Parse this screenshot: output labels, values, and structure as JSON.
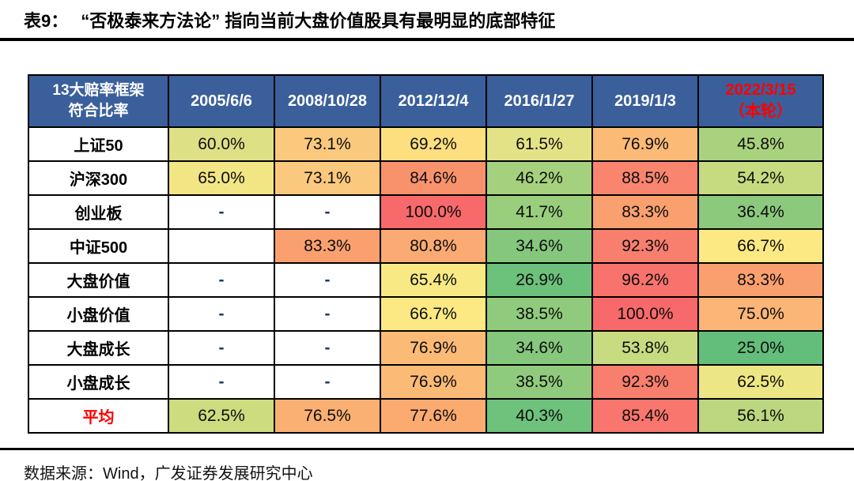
{
  "page": {
    "title_prefix": "表9：",
    "title_text": "“否极泰来方法论” 指向当前大盘价值股具有最明显的底部特征",
    "footer_source": "数据来源：Wind，广发证券发展研究中心"
  },
  "colors": {
    "header_bg": "#3A5F9B",
    "header_text": "#FFFFFF",
    "highlight_text": "#FF0000",
    "border": "#000000",
    "scale_low_green": "#63BE7B",
    "scale_mid_yellow": "#FFEB84",
    "scale_high_red": "#F8696B"
  },
  "table": {
    "header": {
      "corner_line1": "13大赔率框架",
      "corner_line2": "符合比率",
      "dates": [
        "2005/6/6",
        "2008/10/28",
        "2012/12/4",
        "2016/1/27",
        "2019/1/3"
      ],
      "current_line1": "2022/3/15",
      "current_line2": "（本轮）"
    },
    "rows": [
      {
        "label": "上证50",
        "emphasis": false,
        "cells": [
          {
            "text": "60.0%",
            "bg": "#DEE085"
          },
          {
            "text": "73.1%",
            "bg": "#FBC97D"
          },
          {
            "text": "69.2%",
            "bg": "#FDDF7F"
          },
          {
            "text": "61.5%",
            "bg": "#E4E286"
          },
          {
            "text": "76.9%",
            "bg": "#FBBA76"
          },
          {
            "text": "45.8%",
            "bg": "#A9D27F"
          }
        ]
      },
      {
        "label": "沪深300",
        "emphasis": false,
        "cells": [
          {
            "text": "65.0%",
            "bg": "#F2E584"
          },
          {
            "text": "73.1%",
            "bg": "#FBC97D"
          },
          {
            "text": "84.6%",
            "bg": "#F8926C"
          },
          {
            "text": "46.2%",
            "bg": "#A5D17E"
          },
          {
            "text": "88.5%",
            "bg": "#F9856F"
          },
          {
            "text": "54.2%",
            "bg": "#C6DA80"
          }
        ]
      },
      {
        "label": "创业板",
        "emphasis": false,
        "cells": [
          {
            "text": "-",
            "bg": "#FFFFFF"
          },
          {
            "text": "-",
            "bg": "#FFFFFF"
          },
          {
            "text": "100.0%",
            "bg": "#F8696B"
          },
          {
            "text": "41.7%",
            "bg": "#99CE7D"
          },
          {
            "text": "83.3%",
            "bg": "#FAA06F"
          },
          {
            "text": "36.4%",
            "bg": "#8CC97D"
          }
        ]
      },
      {
        "label": "中证500",
        "emphasis": false,
        "cells": [
          {
            "text": "",
            "bg": "#FFFFFF"
          },
          {
            "text": "83.3%",
            "bg": "#FAA06F"
          },
          {
            "text": "80.8%",
            "bg": "#FAAA72"
          },
          {
            "text": "34.6%",
            "bg": "#85C77C"
          },
          {
            "text": "92.3%",
            "bg": "#F87E6E"
          },
          {
            "text": "66.7%",
            "bg": "#FDE983"
          }
        ]
      },
      {
        "label": "大盘价值",
        "emphasis": false,
        "cells": [
          {
            "text": "-",
            "bg": "#FFFFFF"
          },
          {
            "text": "-",
            "bg": "#FFFFFF"
          },
          {
            "text": "65.4%",
            "bg": "#F8E984"
          },
          {
            "text": "26.9%",
            "bg": "#6CC17B"
          },
          {
            "text": "96.2%",
            "bg": "#F8736C"
          },
          {
            "text": "83.3%",
            "bg": "#FAA06F"
          }
        ]
      },
      {
        "label": "小盘价值",
        "emphasis": false,
        "cells": [
          {
            "text": "-",
            "bg": "#FFFFFF"
          },
          {
            "text": "-",
            "bg": "#FFFFFF"
          },
          {
            "text": "66.7%",
            "bg": "#FDE983"
          },
          {
            "text": "38.5%",
            "bg": "#90CB7D"
          },
          {
            "text": "100.0%",
            "bg": "#F8696B"
          },
          {
            "text": "75.0%",
            "bg": "#FBB577"
          }
        ]
      },
      {
        "label": "大盘成长",
        "emphasis": false,
        "cells": [
          {
            "text": "-",
            "bg": "#FFFFFF"
          },
          {
            "text": "-",
            "bg": "#FFFFFF"
          },
          {
            "text": "76.9%",
            "bg": "#FBBA76"
          },
          {
            "text": "34.6%",
            "bg": "#85C77C"
          },
          {
            "text": "53.8%",
            "bg": "#C9DB81"
          },
          {
            "text": "25.0%",
            "bg": "#63BE7B"
          }
        ]
      },
      {
        "label": "小盘成长",
        "emphasis": false,
        "cells": [
          {
            "text": "-",
            "bg": "#FFFFFF"
          },
          {
            "text": "-",
            "bg": "#FFFFFF"
          },
          {
            "text": "76.9%",
            "bg": "#FBBA76"
          },
          {
            "text": "38.5%",
            "bg": "#90CB7D"
          },
          {
            "text": "92.3%",
            "bg": "#F87E6E"
          },
          {
            "text": "62.5%",
            "bg": "#EDE684"
          }
        ]
      },
      {
        "label": "平均",
        "emphasis": true,
        "cells": [
          {
            "text": "62.5%",
            "bg": "#CEDC80"
          },
          {
            "text": "76.5%",
            "bg": "#FBB073"
          },
          {
            "text": "77.6%",
            "bg": "#FBAB70"
          },
          {
            "text": "40.3%",
            "bg": "#6EC27B"
          },
          {
            "text": "85.4%",
            "bg": "#F8766D"
          },
          {
            "text": "56.1%",
            "bg": "#BCD77F"
          }
        ]
      }
    ]
  },
  "chart_data": {
    "type": "table",
    "title": "表9：“否极泰来方法论”指向当前大盘价值股具有最明显的底部特征",
    "columns": [
      "13大赔率框架符合比率",
      "2005/6/6",
      "2008/10/28",
      "2012/12/4",
      "2016/1/27",
      "2019/1/3",
      "2022/3/15（本轮）"
    ],
    "unit": "%",
    "rows": [
      [
        "上证50",
        60.0,
        73.1,
        69.2,
        61.5,
        76.9,
        45.8
      ],
      [
        "沪深300",
        65.0,
        73.1,
        84.6,
        46.2,
        88.5,
        54.2
      ],
      [
        "创业板",
        null,
        null,
        100.0,
        41.7,
        83.3,
        36.4
      ],
      [
        "中证500",
        null,
        83.3,
        80.8,
        34.6,
        92.3,
        66.7
      ],
      [
        "大盘价值",
        null,
        null,
        65.4,
        26.9,
        96.2,
        83.3
      ],
      [
        "小盘价值",
        null,
        null,
        66.7,
        38.5,
        100.0,
        75.0
      ],
      [
        "大盘成长",
        null,
        null,
        76.9,
        34.6,
        53.8,
        25.0
      ],
      [
        "小盘成长",
        null,
        null,
        76.9,
        38.5,
        92.3,
        62.5
      ],
      [
        "平均",
        62.5,
        76.5,
        77.6,
        40.3,
        85.4,
        56.1
      ]
    ],
    "color_scale": {
      "low_green_at": 25.0,
      "mid_yellow_at": 66.7,
      "high_red_at": 100.0
    },
    "source": "Wind，广发证券发展研究中心"
  }
}
